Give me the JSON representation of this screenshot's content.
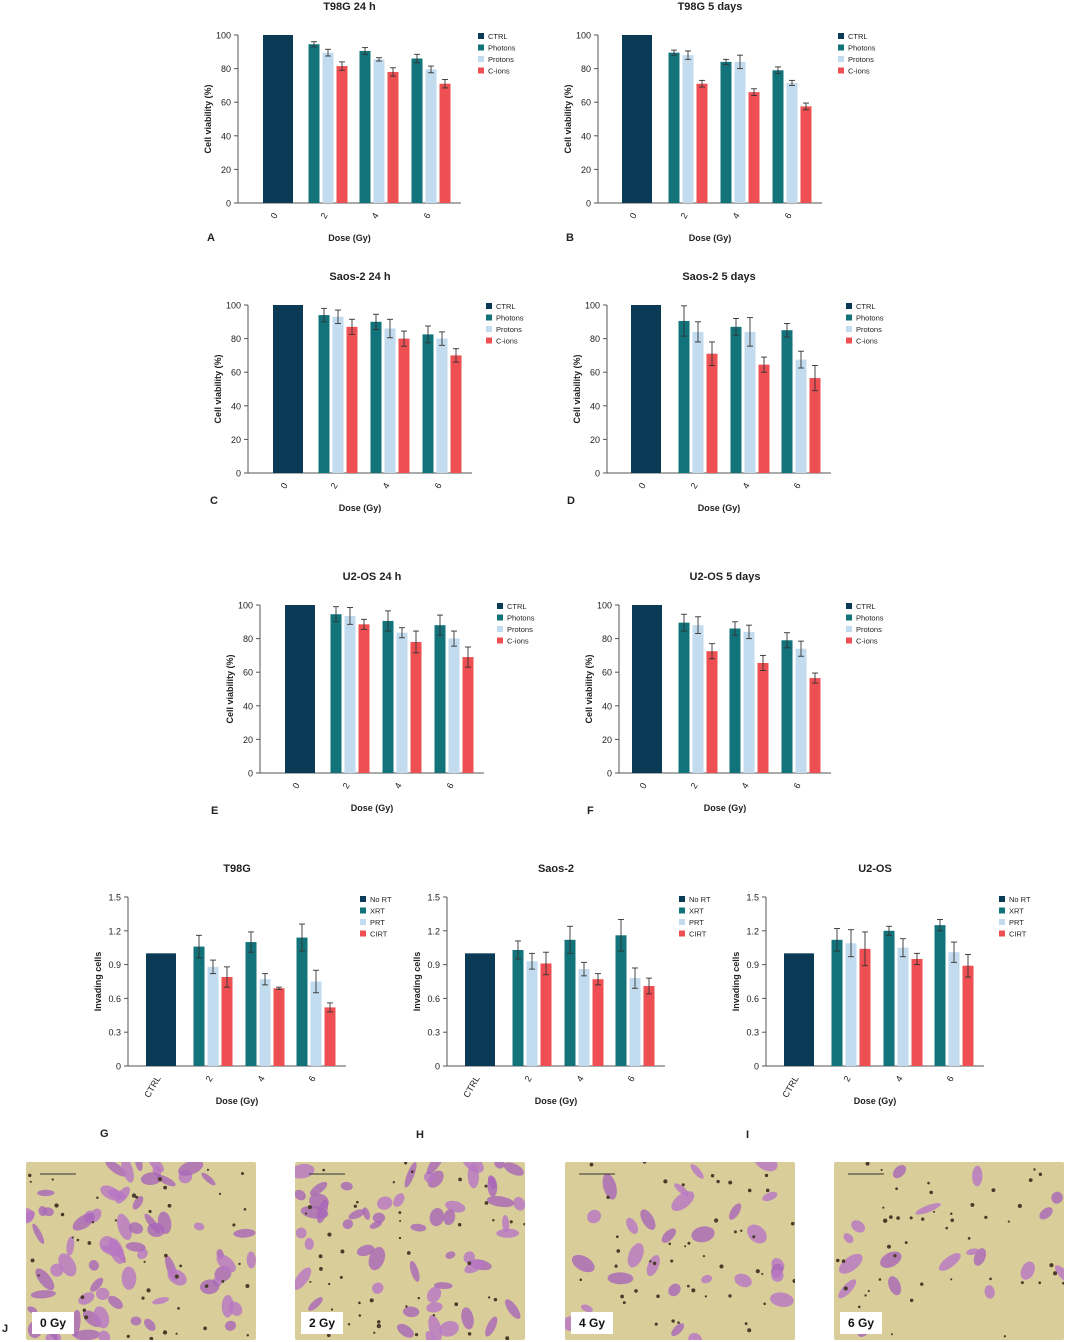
{
  "colors": {
    "ctrl": "#0b3a57",
    "photons": "#12747a",
    "protons": "#c2dbee",
    "cions": "#ee4f52",
    "axis": "#555555",
    "error": "#333333"
  },
  "chart_data": [
    {
      "type": "bar",
      "panel": "A",
      "title": "T98G 24 h",
      "xlabel": "Dose (Gy)",
      "ylabel": "Cell viability (%)",
      "ylim": [
        0,
        100
      ],
      "yticks": [
        "0",
        "20",
        "40",
        "60",
        "80",
        "100"
      ],
      "groups": [
        "0",
        "2",
        "4",
        "6"
      ],
      "legend": [
        "CTRL",
        "Photons",
        "Protons",
        "C-ions"
      ],
      "series": [
        {
          "name": "CTRL",
          "values": [
            100,
            null,
            null,
            null
          ],
          "errors": [
            0,
            null,
            null,
            null
          ]
        },
        {
          "name": "Photons",
          "values": [
            null,
            94.5,
            90.5,
            86
          ],
          "errors": [
            null,
            1.5,
            2,
            2.5
          ]
        },
        {
          "name": "Protons",
          "values": [
            null,
            89.5,
            85.5,
            79.5
          ],
          "errors": [
            null,
            2,
            1,
            2
          ]
        },
        {
          "name": "C-ions",
          "values": [
            null,
            81.5,
            78,
            71
          ],
          "errors": [
            null,
            2.5,
            2.5,
            2.5
          ]
        }
      ]
    },
    {
      "type": "bar",
      "panel": "B",
      "title": "T98G 5 days",
      "xlabel": "Dose (Gy)",
      "ylabel": "Cell viability (%)",
      "ylim": [
        0,
        100
      ],
      "yticks": [
        "0",
        "20",
        "40",
        "60",
        "80",
        "100"
      ],
      "groups": [
        "0",
        "2",
        "4",
        "6"
      ],
      "legend": [
        "CTRL",
        "Photons",
        "Protons",
        "C-ions"
      ],
      "series": [
        {
          "name": "CTRL",
          "values": [
            100,
            null,
            null,
            null
          ],
          "errors": [
            0,
            null,
            null,
            null
          ]
        },
        {
          "name": "Photons",
          "values": [
            null,
            89.5,
            84,
            79
          ],
          "errors": [
            null,
            1.5,
            1.5,
            2
          ]
        },
        {
          "name": "Protons",
          "values": [
            null,
            88,
            84,
            71.5
          ],
          "errors": [
            null,
            2.5,
            4,
            1.5
          ]
        },
        {
          "name": "C-ions",
          "values": [
            null,
            71,
            66,
            57.5
          ],
          "errors": [
            null,
            2,
            2,
            2
          ]
        }
      ]
    },
    {
      "type": "bar",
      "panel": "C",
      "title": "Saos-2 24 h",
      "xlabel": "Dose (Gy)",
      "ylabel": "Cell viability (%)",
      "ylim": [
        0,
        100
      ],
      "yticks": [
        "0",
        "20",
        "40",
        "60",
        "80",
        "100"
      ],
      "groups": [
        "0",
        "2",
        "4",
        "6"
      ],
      "legend": [
        "CTRL",
        "Photons",
        "Protons",
        "C-ions"
      ],
      "series": [
        {
          "name": "CTRL",
          "values": [
            100,
            null,
            null,
            null
          ],
          "errors": [
            0,
            null,
            null,
            null
          ]
        },
        {
          "name": "Photons",
          "values": [
            null,
            94,
            90,
            82.5
          ],
          "errors": [
            null,
            4,
            4.5,
            5
          ]
        },
        {
          "name": "Protons",
          "values": [
            null,
            93,
            86,
            80
          ],
          "errors": [
            null,
            4,
            5.5,
            4
          ]
        },
        {
          "name": "C-ions",
          "values": [
            null,
            87,
            80,
            70
          ],
          "errors": [
            null,
            4.5,
            4.5,
            4
          ]
        }
      ]
    },
    {
      "type": "bar",
      "panel": "D",
      "title": "Saos-2 5 days",
      "xlabel": "Dose (Gy)",
      "ylabel": "Cell viability (%)",
      "ylim": [
        0,
        100
      ],
      "yticks": [
        "0",
        "20",
        "40",
        "60",
        "80",
        "100"
      ],
      "groups": [
        "0",
        "2",
        "4",
        "6"
      ],
      "legend": [
        "CTRL",
        "Photons",
        "Protons",
        "C-ions"
      ],
      "series": [
        {
          "name": "CTRL",
          "values": [
            100,
            null,
            null,
            null
          ],
          "errors": [
            0,
            null,
            null,
            null
          ]
        },
        {
          "name": "Photons",
          "values": [
            null,
            90.5,
            87,
            85
          ],
          "errors": [
            null,
            9,
            5,
            4
          ]
        },
        {
          "name": "Protons",
          "values": [
            null,
            84,
            84,
            67.5
          ],
          "errors": [
            null,
            6,
            8.5,
            5
          ]
        },
        {
          "name": "C-ions",
          "values": [
            null,
            71,
            64.5,
            56.5
          ],
          "errors": [
            null,
            7,
            4.5,
            7.5
          ]
        }
      ]
    },
    {
      "type": "bar",
      "panel": "E",
      "title": "U2-OS 24 h",
      "xlabel": "Dose (Gy)",
      "ylabel": "Cell viability (%)",
      "ylim": [
        0,
        100
      ],
      "yticks": [
        "0",
        "20",
        "40",
        "60",
        "80",
        "100"
      ],
      "groups": [
        "0",
        "2",
        "4",
        "6"
      ],
      "legend": [
        "CTRL",
        "Photons",
        "Protons",
        "C-ions"
      ],
      "series": [
        {
          "name": "CTRL",
          "values": [
            100,
            null,
            null,
            null
          ],
          "errors": [
            0,
            null,
            null,
            null
          ]
        },
        {
          "name": "Photons",
          "values": [
            null,
            94.5,
            90.5,
            88
          ],
          "errors": [
            null,
            4.5,
            6,
            6
          ]
        },
        {
          "name": "Protons",
          "values": [
            null,
            93.5,
            83.5,
            80
          ],
          "errors": [
            null,
            5,
            3,
            4.5
          ]
        },
        {
          "name": "C-ions",
          "values": [
            null,
            88.5,
            78,
            69
          ],
          "errors": [
            null,
            3,
            6.5,
            6
          ]
        }
      ]
    },
    {
      "type": "bar",
      "panel": "F",
      "title": "U2-OS 5 days",
      "xlabel": "Dose (Gy)",
      "ylabel": "Cell viability (%)",
      "ylim": [
        0,
        100
      ],
      "yticks": [
        "0",
        "20",
        "40",
        "60",
        "80",
        "100"
      ],
      "groups": [
        "0",
        "2",
        "4",
        "6"
      ],
      "legend": [
        "CTRL",
        "Photons",
        "Protons",
        "C-ions"
      ],
      "series": [
        {
          "name": "CTRL",
          "values": [
            100,
            null,
            null,
            null
          ],
          "errors": [
            0,
            null,
            null,
            null
          ]
        },
        {
          "name": "Photons",
          "values": [
            null,
            89.5,
            86,
            79
          ],
          "errors": [
            null,
            5,
            4,
            4.5
          ]
        },
        {
          "name": "Protons",
          "values": [
            null,
            88,
            84,
            74
          ],
          "errors": [
            null,
            5,
            4,
            4.5
          ]
        },
        {
          "name": "C-ions",
          "values": [
            null,
            72.5,
            65.5,
            56.5
          ],
          "errors": [
            null,
            4.5,
            4.5,
            3
          ]
        }
      ]
    },
    {
      "type": "bar",
      "panel": "G",
      "title": "T98G",
      "xlabel": "Dose (Gy)",
      "ylabel": "Invading cells",
      "ylim": [
        0,
        1.5
      ],
      "yticks": [
        "0",
        "0.3",
        "0.6",
        "0.9",
        "1.2",
        "1.5"
      ],
      "groups": [
        "CTRL",
        "2",
        "4",
        "6"
      ],
      "legend": [
        "No RT",
        "XRT",
        "PRT",
        "CIRT"
      ],
      "series": [
        {
          "name": "No RT",
          "values": [
            1,
            null,
            null,
            null
          ],
          "errors": [
            0,
            null,
            null,
            null
          ]
        },
        {
          "name": "XRT",
          "values": [
            null,
            1.06,
            1.1,
            1.14
          ],
          "errors": [
            null,
            0.1,
            0.09,
            0.12
          ]
        },
        {
          "name": "PRT",
          "values": [
            null,
            0.88,
            0.77,
            0.75
          ],
          "errors": [
            null,
            0.06,
            0.05,
            0.1
          ]
        },
        {
          "name": "CIRT",
          "values": [
            null,
            0.79,
            0.69,
            0.52
          ],
          "errors": [
            null,
            0.09,
            0.01,
            0.04
          ]
        }
      ]
    },
    {
      "type": "bar",
      "panel": "H",
      "title": "Saos-2",
      "xlabel": "Dose (Gy)",
      "ylabel": "Invading cells",
      "ylim": [
        0,
        1.5
      ],
      "yticks": [
        "0",
        "0.3",
        "0.6",
        "0.9",
        "1.2",
        "1.5"
      ],
      "groups": [
        "CTRL",
        "2",
        "4",
        "6"
      ],
      "legend": [
        "No RT",
        "XRT",
        "PRT",
        "CIRT"
      ],
      "series": [
        {
          "name": "No RT",
          "values": [
            1,
            null,
            null,
            null
          ],
          "errors": [
            0,
            null,
            null,
            null
          ]
        },
        {
          "name": "XRT",
          "values": [
            null,
            1.03,
            1.12,
            1.16
          ],
          "errors": [
            null,
            0.08,
            0.12,
            0.14
          ]
        },
        {
          "name": "PRT",
          "values": [
            null,
            0.93,
            0.86,
            0.78
          ],
          "errors": [
            null,
            0.07,
            0.06,
            0.09
          ]
        },
        {
          "name": "CIRT",
          "values": [
            null,
            0.91,
            0.77,
            0.71
          ],
          "errors": [
            null,
            0.1,
            0.05,
            0.07
          ]
        }
      ]
    },
    {
      "type": "bar",
      "panel": "I",
      "title": "U2-OS",
      "xlabel": "Dose (Gy)",
      "ylabel": "Invading cells",
      "ylim": [
        0,
        1.5
      ],
      "yticks": [
        "0",
        "0.3",
        "0.6",
        "0.9",
        "1.2",
        "1.5"
      ],
      "groups": [
        "CTRL",
        "2",
        "4",
        "6"
      ],
      "legend": [
        "No RT",
        "XRT",
        "PRT",
        "CIRT"
      ],
      "series": [
        {
          "name": "No RT",
          "values": [
            1,
            null,
            null,
            null
          ],
          "errors": [
            0,
            null,
            null,
            null
          ]
        },
        {
          "name": "XRT",
          "values": [
            null,
            1.12,
            1.2,
            1.25
          ],
          "errors": [
            null,
            0.1,
            0.04,
            0.05
          ]
        },
        {
          "name": "PRT",
          "values": [
            null,
            1.09,
            1.05,
            1.01
          ],
          "errors": [
            null,
            0.12,
            0.08,
            0.09
          ]
        },
        {
          "name": "CIRT",
          "values": [
            null,
            1.04,
            0.95,
            0.89
          ],
          "errors": [
            null,
            0.15,
            0.05,
            0.1
          ]
        }
      ]
    }
  ],
  "micrographs": {
    "panel": "J",
    "labels": [
      "0 Gy",
      "2 Gy",
      "4 Gy",
      "6 Gy"
    ]
  }
}
